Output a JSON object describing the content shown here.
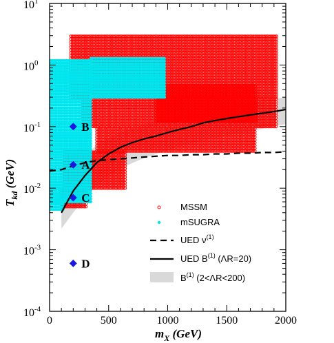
{
  "chart_data": {
    "type": "scatter",
    "xlabel": "m",
    "xlabel_sub": "X",
    "xlabel_unit": "(GeV)",
    "ylabel": "T",
    "ylabel_sub": "kd",
    "ylabel_unit": "(GeV)",
    "xlim": [
      0,
      2000
    ],
    "ylim": [
      0.0001,
      10
    ],
    "y_scale": "log",
    "x_ticks": [
      "0",
      "500",
      "1000",
      "1500",
      "2000"
    ],
    "y_ticks": [
      {
        "base": "10",
        "exp": "-4"
      },
      {
        "base": "10",
        "exp": "-3"
      },
      {
        "base": "10",
        "exp": "-2"
      },
      {
        "base": "10",
        "exp": "-1"
      },
      {
        "base": "10",
        "exp": "0"
      },
      {
        "base": "10",
        "exp": "1"
      }
    ],
    "points": [
      {
        "label": "A",
        "x": 200,
        "y": 0.024
      },
      {
        "label": "B",
        "x": 200,
        "y": 0.1
      },
      {
        "label": "C",
        "x": 200,
        "y": 0.007
      },
      {
        "label": "D",
        "x": 200,
        "y": 0.0006
      }
    ],
    "series": [
      {
        "name": "MSSM",
        "kind": "scatter-open",
        "color": "#ff0000",
        "regions": [
          {
            "x": [
              180,
              1930
            ],
            "y": [
              0.3,
              3
            ]
          },
          {
            "x": [
              280,
              1930
            ],
            "y": [
              0.1,
              0.3
            ]
          },
          {
            "x": [
              400,
              1750
            ],
            "y": [
              0.04,
              0.1
            ]
          },
          {
            "x": [
              900,
              1750
            ],
            "y": [
              0.12,
              0.5
            ]
          },
          {
            "x": [
              120,
              650
            ],
            "y": [
              0.01,
              0.04
            ]
          },
          {
            "x": [
              100,
              320
            ],
            "y": [
              0.005,
              0.01
            ]
          }
        ]
      },
      {
        "name": "mSUGRA",
        "kind": "scatter-filled",
        "color": "#00e5ee",
        "regions": [
          {
            "x": [
              10,
              350
            ],
            "y": [
              0.006,
              1.3
            ]
          },
          {
            "x": [
              350,
              980
            ],
            "y": [
              0.3,
              1.3
            ]
          },
          {
            "x": [
              10,
              120
            ],
            "y": [
              0.0045,
              0.006
            ]
          }
        ]
      },
      {
        "name": "UED ν",
        "name_sup": "(1)",
        "kind": "dashed",
        "x": [
          0,
          100,
          200,
          300,
          400,
          500,
          600,
          700,
          800,
          900,
          1000,
          1100,
          1200,
          1300,
          1400,
          1500,
          1600,
          1700,
          1800,
          1900,
          2000
        ],
        "y": [
          0.019,
          0.02,
          0.023,
          0.026,
          0.028,
          0.029,
          0.03,
          0.031,
          0.032,
          0.033,
          0.034,
          0.034,
          0.035,
          0.035,
          0.036,
          0.036,
          0.037,
          0.037,
          0.038,
          0.038,
          0.039
        ]
      },
      {
        "name": "UED B",
        "name_sup": "(1)",
        "name_suffix": "(ΛR=20)",
        "kind": "solid",
        "x": [
          100,
          150,
          200,
          300,
          400,
          500,
          600,
          700,
          800,
          900,
          1000,
          1100,
          1200,
          1300,
          1400,
          1500,
          1600,
          1700,
          1800,
          1900,
          2000
        ],
        "y": [
          0.004,
          0.006,
          0.009,
          0.016,
          0.026,
          0.036,
          0.046,
          0.055,
          0.063,
          0.07,
          0.08,
          0.09,
          0.1,
          0.115,
          0.125,
          0.135,
          0.145,
          0.155,
          0.165,
          0.175,
          0.19
        ]
      },
      {
        "name": "B",
        "name_sup": "(1)",
        "name_suffix": "(2<ΛR<200)",
        "kind": "band",
        "color": "#d9d9d9",
        "x": [
          100,
          200,
          300,
          400,
          500,
          600,
          800,
          1000,
          1200,
          1400,
          1600,
          1800,
          2000
        ],
        "y_low": [
          0.0022,
          0.004,
          0.007,
          0.011,
          0.016,
          0.021,
          0.031,
          0.041,
          0.053,
          0.065,
          0.078,
          0.092,
          0.11
        ],
        "y_high": [
          0.01,
          0.02,
          0.035,
          0.05,
          0.065,
          0.08,
          0.11,
          0.14,
          0.17,
          0.2,
          0.23,
          0.26,
          0.3
        ]
      }
    ],
    "legend_position": "bottom-right"
  }
}
